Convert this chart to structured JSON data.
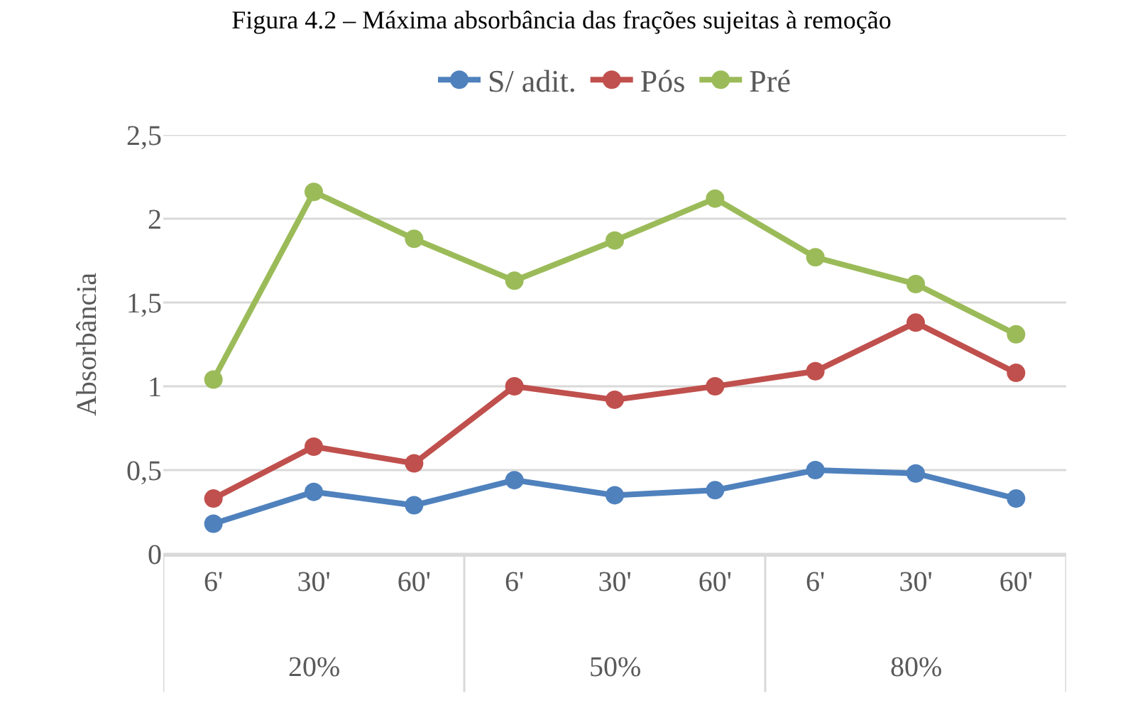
{
  "chart_data": {
    "type": "line",
    "title": "Figura 4.2 – Máxima absorbância das frações sujeitas à remoção",
    "ylabel": "Absorbância",
    "categories": [
      "6'",
      "30'",
      "60'",
      "6'",
      "30'",
      "60'",
      "6'",
      "30'",
      "60'"
    ],
    "annotations": [
      "20%",
      "50%",
      "80%"
    ],
    "series": [
      {
        "name": "S/ adit.",
        "color": "#4f81bd",
        "values": [
          0.18,
          0.37,
          0.29,
          0.44,
          0.35,
          0.38,
          0.5,
          0.48,
          0.33
        ]
      },
      {
        "name": "Pós",
        "color": "#c0504d",
        "values": [
          0.33,
          0.64,
          0.54,
          1.0,
          0.92,
          1.0,
          1.09,
          1.38,
          1.08
        ]
      },
      {
        "name": "Pré",
        "color": "#9bbb59",
        "values": [
          1.04,
          2.16,
          1.88,
          1.63,
          1.87,
          2.12,
          1.77,
          1.61,
          1.31
        ]
      }
    ],
    "ylim": [
      0,
      2.5
    ],
    "yticks": [
      {
        "value": 0,
        "label": "0"
      },
      {
        "value": 0.5,
        "label": "0,5"
      },
      {
        "value": 1,
        "label": "1"
      },
      {
        "value": 1.5,
        "label": "1,5"
      },
      {
        "value": 2,
        "label": "2"
      },
      {
        "value": 2.5,
        "label": "2,5"
      }
    ],
    "grid": "y",
    "legend": "top",
    "marker": "circle",
    "line_style": "solid"
  }
}
